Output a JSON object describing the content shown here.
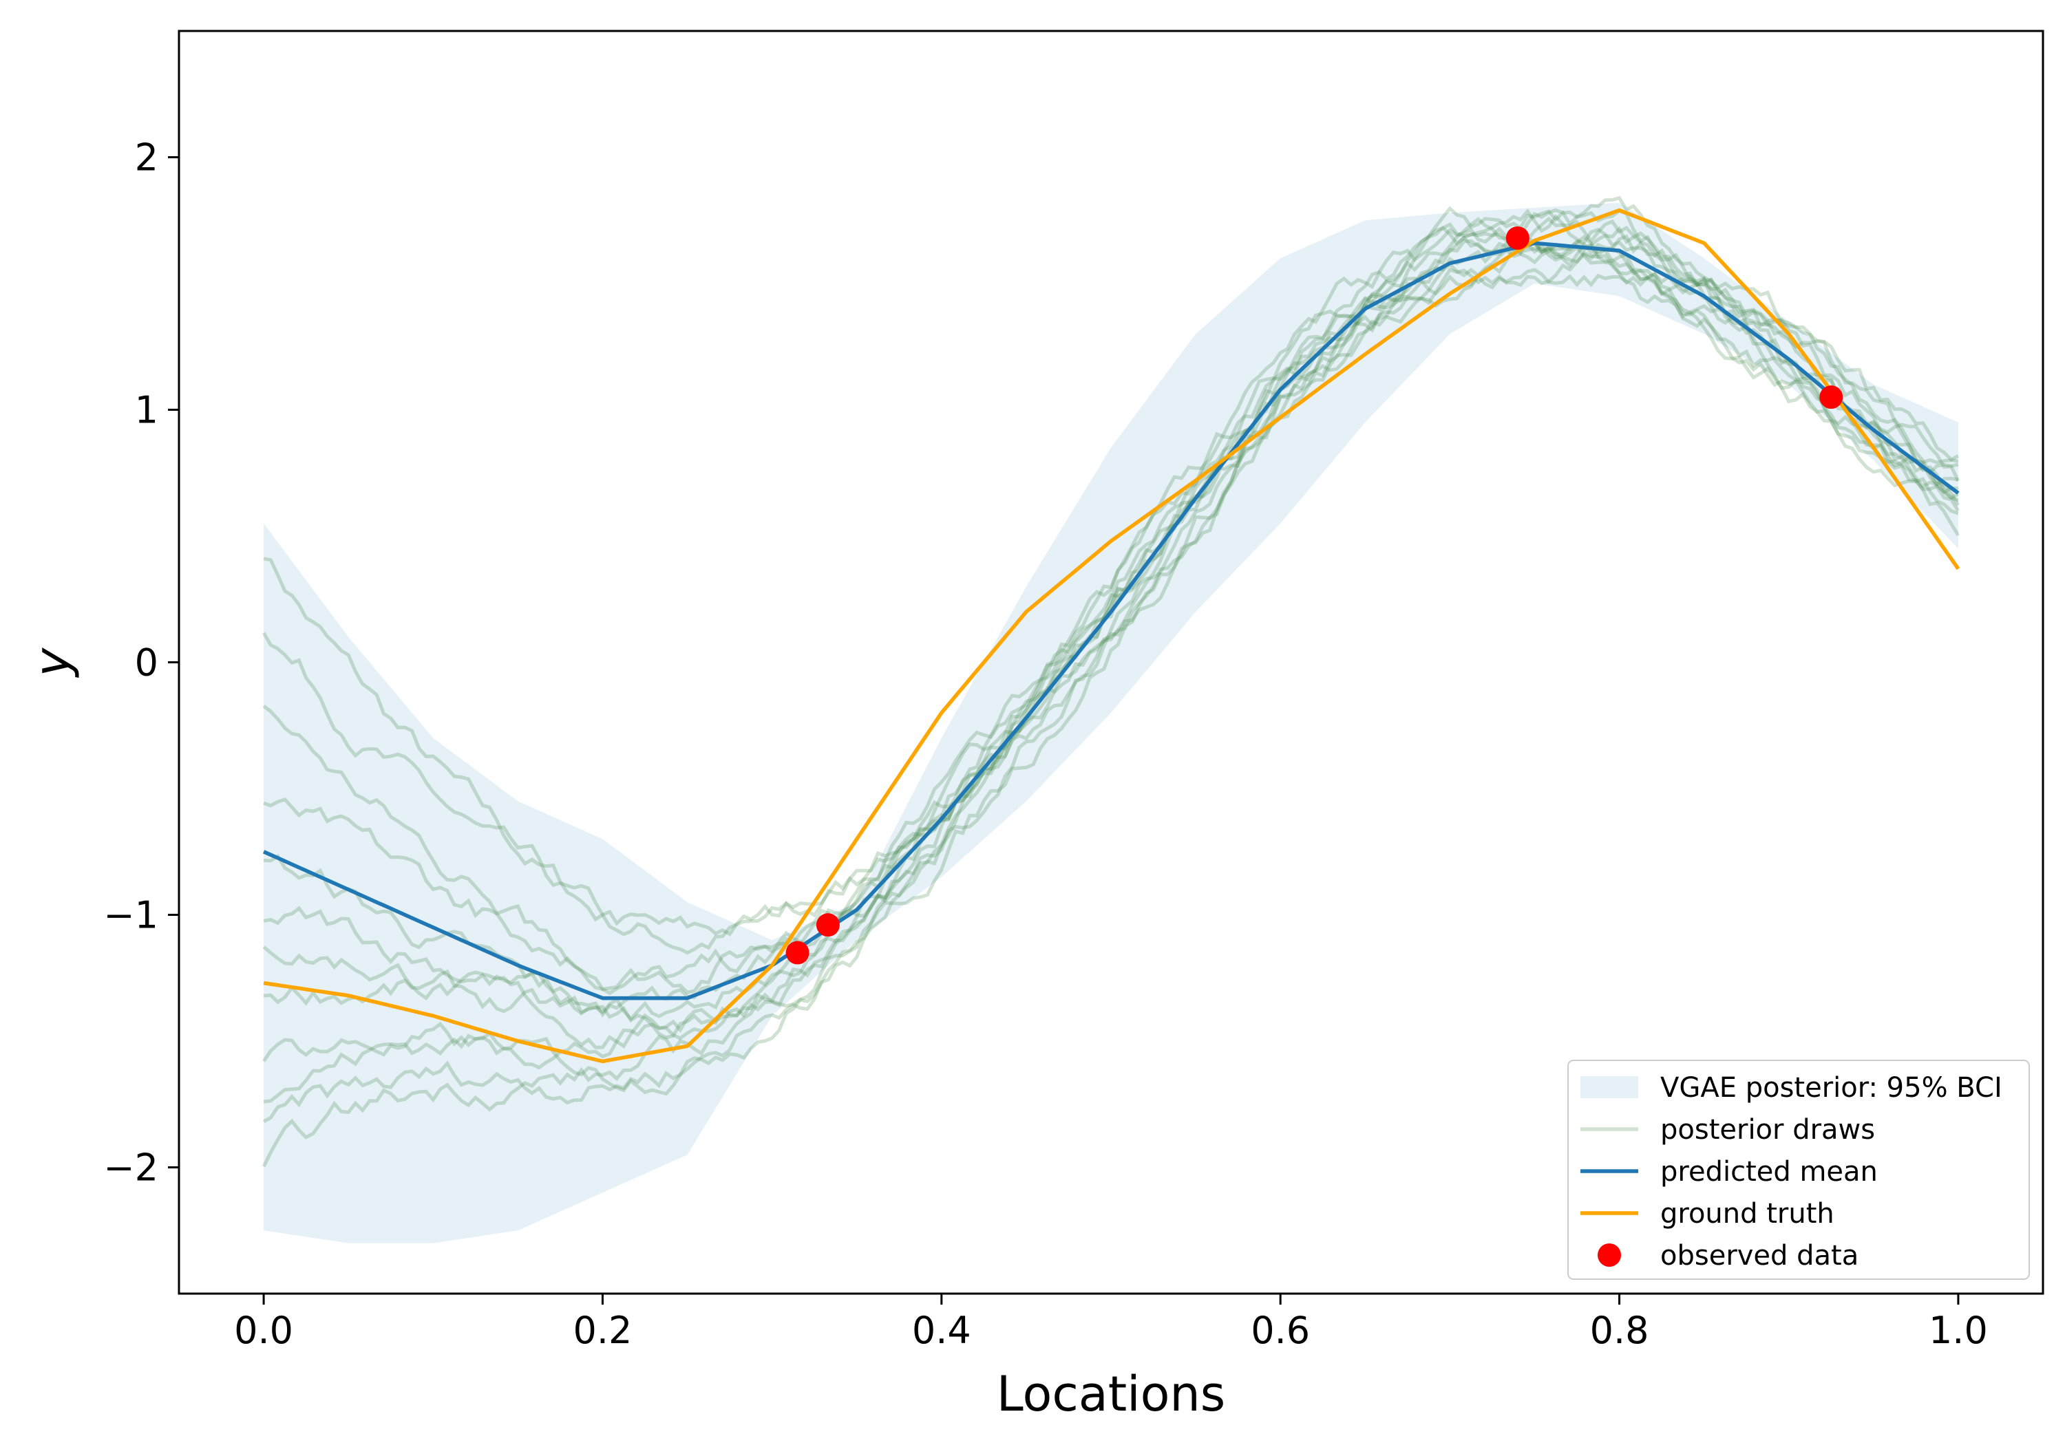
{
  "chart_data": {
    "type": "line",
    "title": "",
    "xlabel": "Locations",
    "ylabel": "y",
    "xlim": [
      -0.05,
      1.05
    ],
    "ylim": [
      -2.5,
      2.5
    ],
    "xticks": [
      0.0,
      0.2,
      0.4,
      0.6,
      0.8,
      1.0
    ],
    "xtick_labels": [
      "0.0",
      "0.2",
      "0.4",
      "0.6",
      "0.8",
      "1.0"
    ],
    "yticks": [
      -2,
      -1,
      0,
      1,
      2
    ],
    "ytick_labels": [
      "−2",
      "−1",
      "0",
      "1",
      "2"
    ],
    "grid": false,
    "legend_position": "bottom-right",
    "colors": {
      "band": "#1f77b4",
      "draws": "#2e7d32",
      "mean": "#1f77b4",
      "truth": "#ffa500",
      "observed": "#ff0000"
    },
    "legend": [
      {
        "label": "VGAE posterior: 95% BCI",
        "kind": "band"
      },
      {
        "label": "posterior draws",
        "kind": "draws"
      },
      {
        "label": "predicted mean",
        "kind": "mean"
      },
      {
        "label": "ground truth",
        "kind": "truth"
      },
      {
        "label": "observed data",
        "kind": "observed"
      }
    ],
    "x": [
      0.0,
      0.05,
      0.1,
      0.15,
      0.2,
      0.25,
      0.3,
      0.35,
      0.4,
      0.45,
      0.5,
      0.55,
      0.6,
      0.65,
      0.7,
      0.75,
      0.8,
      0.85,
      0.9,
      0.95,
      1.0
    ],
    "band": {
      "name": "VGAE posterior: 95% BCI",
      "lower": [
        -2.25,
        -2.3,
        -2.3,
        -2.25,
        -2.1,
        -1.95,
        -1.4,
        -1.1,
        -0.85,
        -0.55,
        -0.2,
        0.2,
        0.55,
        0.95,
        1.3,
        1.5,
        1.45,
        1.3,
        1.1,
        0.8,
        0.45
      ],
      "upper": [
        0.55,
        0.1,
        -0.3,
        -0.55,
        -0.7,
        -0.95,
        -1.1,
        -0.95,
        -0.3,
        0.3,
        0.85,
        1.3,
        1.6,
        1.75,
        1.78,
        1.8,
        1.82,
        1.6,
        1.35,
        1.1,
        0.95
      ]
    },
    "series": [
      {
        "name": "predicted mean",
        "values": [
          -0.75,
          -0.9,
          -1.05,
          -1.2,
          -1.33,
          -1.33,
          -1.2,
          -0.98,
          -0.62,
          -0.22,
          0.2,
          0.65,
          1.08,
          1.4,
          1.58,
          1.66,
          1.63,
          1.45,
          1.2,
          0.92,
          0.67
        ]
      },
      {
        "name": "ground truth",
        "values": [
          -1.27,
          -1.32,
          -1.4,
          -1.5,
          -1.58,
          -1.52,
          -1.2,
          -0.7,
          -0.2,
          0.2,
          0.48,
          0.72,
          0.97,
          1.22,
          1.46,
          1.67,
          1.79,
          1.66,
          1.3,
          0.85,
          0.37
        ]
      }
    ],
    "posterior_draws": {
      "name": "posterior draws",
      "count": 12,
      "start": [
        0.45,
        0.15,
        -0.15,
        -0.55,
        -0.75,
        -1.0,
        -1.1,
        -1.3,
        -1.55,
        -1.7,
        -1.85,
        -2.0
      ],
      "noise": 0.04
    },
    "observed": {
      "name": "observed data",
      "x": [
        0.315,
        0.333,
        0.74,
        0.925
      ],
      "y": [
        -1.15,
        -1.04,
        1.68,
        1.05
      ]
    }
  }
}
